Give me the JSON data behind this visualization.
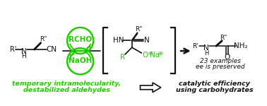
{
  "bg_color": "#ffffff",
  "green": "#22cc00",
  "black": "#111111",
  "fig_w": 3.78,
  "fig_h": 1.5,
  "bottom_green_text1": "temporary intramolecularity,",
  "bottom_green_text2": "destabilized aldehydes",
  "bottom_black_text1": "catalytic efficiency",
  "bottom_black_text2": "using carbohydrates",
  "right_text1": "23 examples",
  "right_text2": "ee is preserved"
}
